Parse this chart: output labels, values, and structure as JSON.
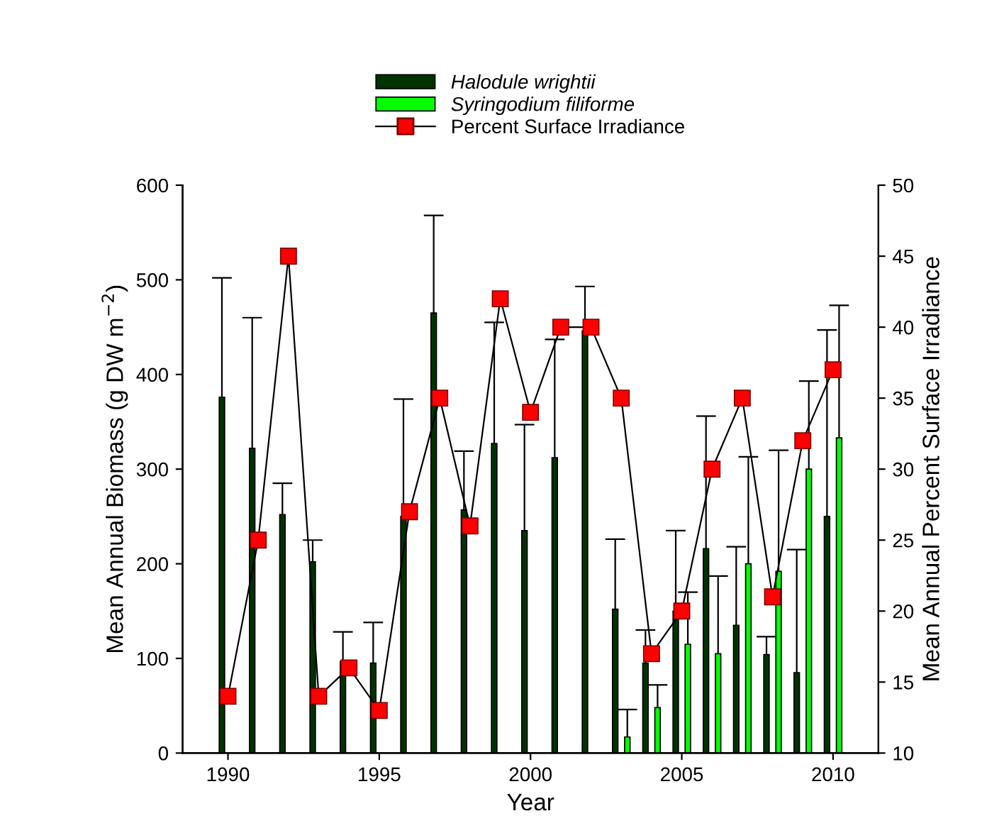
{
  "chart_data": {
    "type": "bar",
    "xlabel": "Year",
    "ylabel": "Mean Annual Biomass (g DW m$^{−2}$)",
    "y2label": "Mean Annual Percent Surface Irradiance",
    "x": [
      1990,
      1991,
      1992,
      1993,
      1994,
      1995,
      1996,
      1997,
      1998,
      1999,
      2000,
      2001,
      2002,
      2003,
      2004,
      2005,
      2006,
      2007,
      2008,
      2009,
      2010
    ],
    "series": [
      {
        "name": "Halodule wrightii",
        "color": "#003300",
        "values": [
          376,
          322,
          252,
          202,
          97,
          95,
          250,
          465,
          257,
          327,
          235,
          312,
          446,
          152,
          95,
          150,
          216,
          135,
          104,
          85,
          250
        ],
        "errors": [
          [
            376,
            502
          ],
          [
            322,
            460
          ],
          [
            252,
            285
          ],
          [
            202,
            225
          ],
          [
            97,
            128
          ],
          [
            95,
            138
          ],
          [
            250,
            374
          ],
          [
            465,
            568
          ],
          [
            257,
            319
          ],
          [
            327,
            455
          ],
          [
            235,
            347
          ],
          [
            312,
            437
          ],
          [
            446,
            493
          ],
          [
            152,
            226
          ],
          [
            95,
            130
          ],
          [
            150,
            235
          ],
          [
            216,
            356
          ],
          [
            135,
            218
          ],
          [
            104,
            123
          ],
          [
            85,
            215
          ],
          [
            250,
            447
          ]
        ]
      },
      {
        "name": "Syringodium filiforme",
        "color": "#00ff00",
        "values": [
          null,
          null,
          null,
          null,
          null,
          null,
          null,
          null,
          null,
          null,
          null,
          null,
          null,
          17,
          48,
          115,
          105,
          200,
          192,
          300,
          333
        ],
        "errors": [
          null,
          null,
          null,
          null,
          null,
          null,
          null,
          null,
          null,
          null,
          null,
          null,
          null,
          [
            17,
            46
          ],
          [
            48,
            72
          ],
          [
            115,
            170
          ],
          [
            105,
            187
          ],
          [
            200,
            313
          ],
          [
            192,
            320
          ],
          [
            300,
            393
          ],
          [
            333,
            473
          ]
        ]
      },
      {
        "name": "Percent Surface Irradiance",
        "type": "line",
        "axis": "y2",
        "color": "#ff0000",
        "marker": "square",
        "values": [
          14,
          25,
          45,
          14,
          16,
          13,
          27,
          35,
          26,
          42,
          34,
          40,
          40,
          35,
          17,
          20,
          30,
          35,
          21,
          32,
          37
        ]
      }
    ],
    "xlim": [
      1988.5,
      2011.5
    ],
    "xticks": [
      1990,
      1995,
      2000,
      2005,
      2010
    ],
    "ylim": [
      0,
      600
    ],
    "yticks": [
      0,
      100,
      200,
      300,
      400,
      500,
      600
    ],
    "y2lim": [
      10,
      50
    ],
    "y2ticks": [
      10,
      15,
      20,
      25,
      30,
      35,
      40,
      45,
      50
    ],
    "legend": "top",
    "grid": false
  }
}
